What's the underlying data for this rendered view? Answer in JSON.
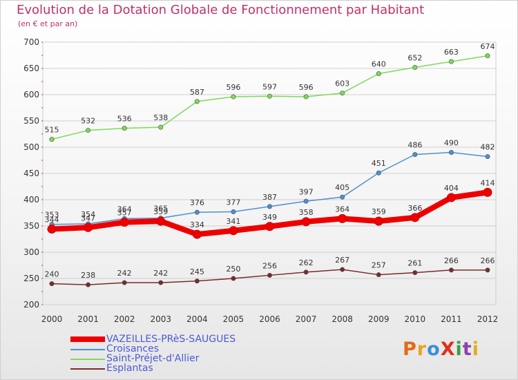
{
  "header": {
    "title": "Evolution de la Dotation Globale de Fonctionnement par Habitant",
    "subtitle": "(en € et par an)"
  },
  "logo": {
    "text": "ProXiti",
    "colors": [
      "#e06a1a",
      "#f0a020",
      "#3a8fd8",
      "#e0301a",
      "#3aa040",
      "#9040b0",
      "#e0b020"
    ]
  },
  "colors": {
    "title": "#c0306a",
    "legend_text": "#4a5bd8",
    "grid": "#d0d0d0"
  },
  "chart_data": {
    "type": "line",
    "categories": [
      "2000",
      "2001",
      "2002",
      "2003",
      "2004",
      "2005",
      "2006",
      "2007",
      "2008",
      "2009",
      "2010",
      "2011",
      "2012"
    ],
    "ylim": [
      200,
      700
    ],
    "yticks": [
      200,
      250,
      300,
      350,
      400,
      450,
      500,
      550,
      600,
      650,
      700
    ],
    "grid": true,
    "legend_position": "bottom-left",
    "series": [
      {
        "name": "Esplantas",
        "color": "#7a2a2a",
        "values": [
          240,
          238,
          242,
          242,
          245,
          250,
          256,
          262,
          267,
          257,
          261,
          266,
          266
        ]
      },
      {
        "name": "Saint-Préjet-d'Allier",
        "color": "#7ed957",
        "values": [
          515,
          532,
          536,
          538,
          587,
          596,
          597,
          596,
          603,
          640,
          652,
          663,
          674
        ]
      },
      {
        "name": "Croisances",
        "color": "#4a90d0",
        "values": [
          353,
          354,
          364,
          365,
          376,
          377,
          387,
          397,
          405,
          451,
          486,
          490,
          482
        ]
      },
      {
        "name": "VAZEILLES-PRèS-SAUGUES",
        "color": "#ee0000",
        "values": [
          344,
          347,
          357,
          359,
          334,
          341,
          349,
          358,
          364,
          359,
          366,
          404,
          414
        ]
      }
    ],
    "legend_order": [
      "VAZEILLES-PRèS-SAUGUES",
      "Croisances",
      "Saint-Préjet-d'Allier",
      "Esplantas"
    ]
  }
}
